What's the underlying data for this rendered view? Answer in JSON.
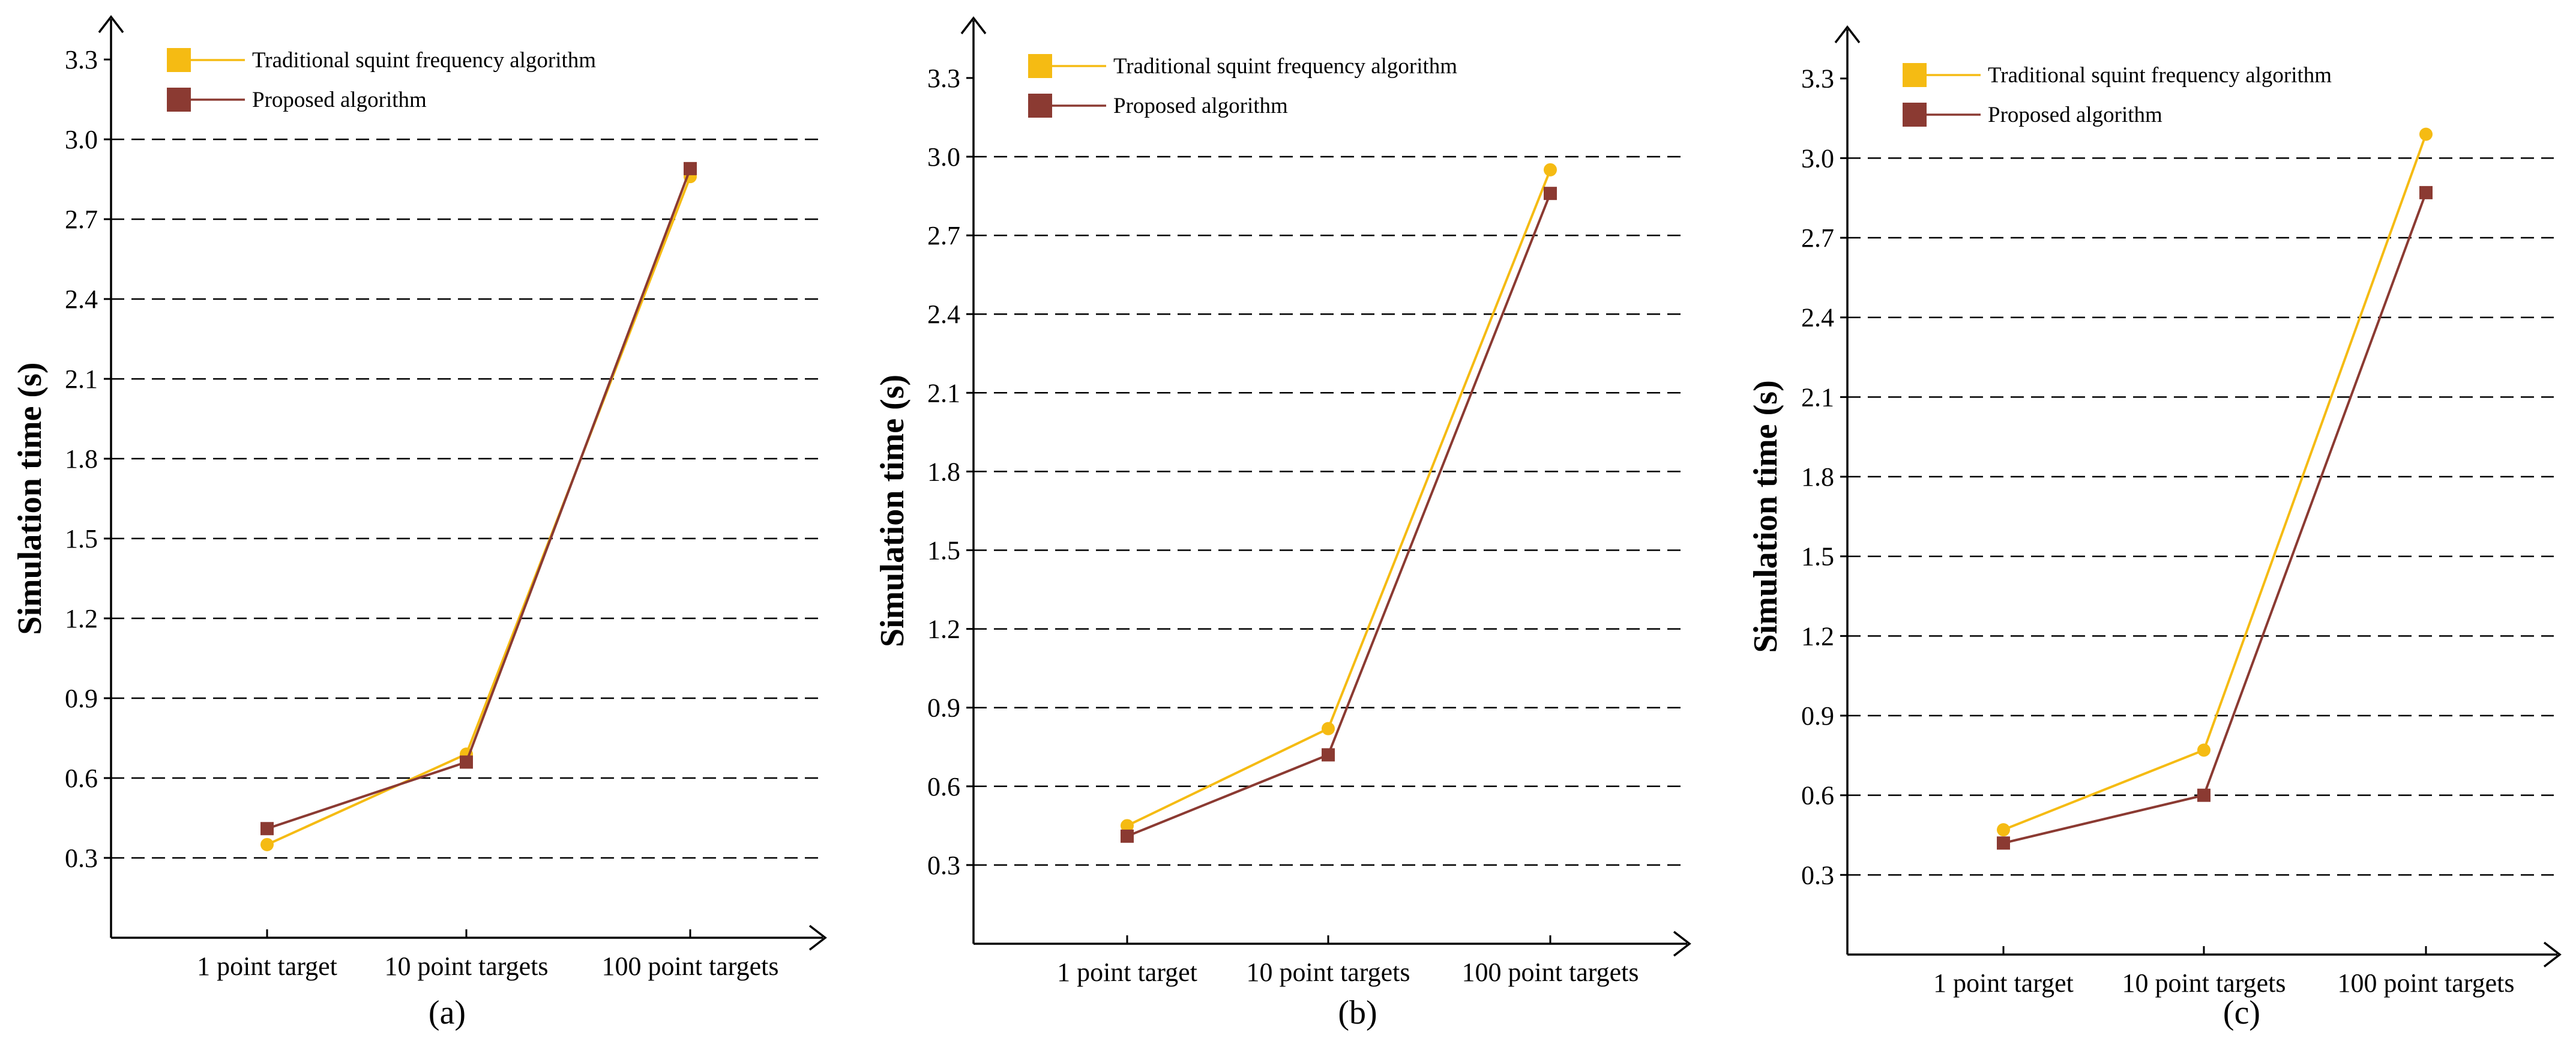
{
  "legend": {
    "traditional": "Traditional squint frequency algorithm",
    "proposed": "Proposed algorithm"
  },
  "colors": {
    "traditional": "#f5bb13",
    "proposed": "#8b3a32",
    "axis": "#000000",
    "grid": "#000000"
  },
  "chart_data": [
    {
      "type": "line",
      "caption": "(a)",
      "ylabel": "Simulation time (s)",
      "xlabel": "",
      "categories": [
        "1 point target",
        "10 point targets",
        "100 point targets"
      ],
      "yticks": [
        "0.3",
        "0.6",
        "0.9",
        "1.2",
        "1.5",
        "1.8",
        "2.1",
        "2.4",
        "2.7",
        "3.0",
        "3.3"
      ],
      "ylim": [
        0,
        3.45
      ],
      "grid": "dashed horizontal at 0.3 to 3.0",
      "series": [
        {
          "name": "Traditional squint frequency algorithm",
          "values": [
            0.35,
            0.69,
            2.86
          ]
        },
        {
          "name": "Proposed algorithm",
          "values": [
            0.41,
            0.66,
            2.89
          ]
        }
      ]
    },
    {
      "type": "line",
      "caption": "(b)",
      "ylabel": "Simulation time (s)",
      "xlabel": "",
      "categories": [
        "1 point target",
        "10 point targets",
        "100 point targets"
      ],
      "yticks": [
        "0.3",
        "0.6",
        "0.9",
        "1.2",
        "1.5",
        "1.8",
        "2.1",
        "2.4",
        "2.7",
        "3.0",
        "3.3"
      ],
      "ylim": [
        0,
        3.45
      ],
      "grid": "dashed horizontal at 0.3 to 3.0",
      "series": [
        {
          "name": "Traditional squint frequency algorithm",
          "values": [
            0.45,
            0.82,
            2.95
          ]
        },
        {
          "name": "Proposed algorithm",
          "values": [
            0.41,
            0.72,
            2.86
          ]
        }
      ]
    },
    {
      "type": "line",
      "caption": "(c)",
      "ylabel": "Simulation time (s)",
      "xlabel": "",
      "categories": [
        "1 point target",
        "10 point targets",
        "100 point targets"
      ],
      "yticks": [
        "0.3",
        "0.6",
        "0.9",
        "1.2",
        "1.5",
        "1.8",
        "2.1",
        "2.4",
        "2.7",
        "3.0",
        "3.3"
      ],
      "ylim": [
        0,
        3.45
      ],
      "grid": "dashed horizontal at 0.3 to 3.0",
      "series": [
        {
          "name": "Traditional squint frequency algorithm",
          "values": [
            0.47,
            0.77,
            3.09
          ]
        },
        {
          "name": "Proposed algorithm",
          "values": [
            0.42,
            0.6,
            2.87
          ]
        }
      ]
    }
  ]
}
